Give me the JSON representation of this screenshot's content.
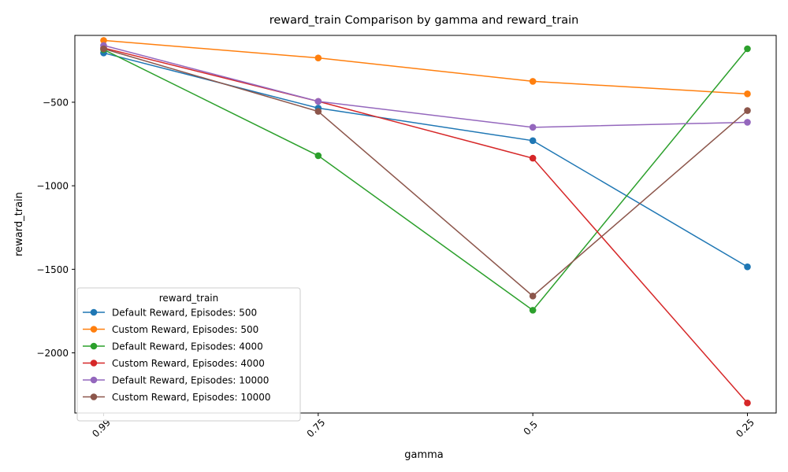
{
  "chart_data": {
    "type": "line",
    "title": "reward_train Comparison by gamma and reward_train",
    "xlabel": "gamma",
    "ylabel": "reward_train",
    "categories": [
      "0.99",
      "0.75",
      "0.5",
      "0.25"
    ],
    "ylim": [
      -2360,
      -100
    ],
    "yticks": [
      -500,
      -1000,
      -1500,
      -2000
    ],
    "ytick_labels": [
      "−500",
      "−1000",
      "−1500",
      "−2000"
    ],
    "grid": false,
    "legend": {
      "title": "reward_train",
      "placement": "lower-left"
    },
    "series": [
      {
        "name": "Default Reward, Episodes: 500",
        "color": "#1f77b4",
        "values": [
          -205,
          -535,
          -730,
          -1485
        ]
      },
      {
        "name": "Custom Reward, Episodes: 500",
        "color": "#ff7f0e",
        "values": [
          -130,
          -235,
          -375,
          -450
        ]
      },
      {
        "name": "Default Reward, Episodes: 4000",
        "color": "#2ca02c",
        "values": [
          -185,
          -820,
          -1745,
          -180
        ]
      },
      {
        "name": "Custom Reward, Episodes: 4000",
        "color": "#d62728",
        "values": [
          -175,
          -495,
          -835,
          -2300
        ]
      },
      {
        "name": "Default Reward, Episodes: 10000",
        "color": "#9467bd",
        "values": [
          -160,
          -495,
          -650,
          -620
        ]
      },
      {
        "name": "Custom Reward, Episodes: 10000",
        "color": "#8c564b",
        "values": [
          -180,
          -555,
          -1660,
          -550
        ]
      }
    ]
  }
}
